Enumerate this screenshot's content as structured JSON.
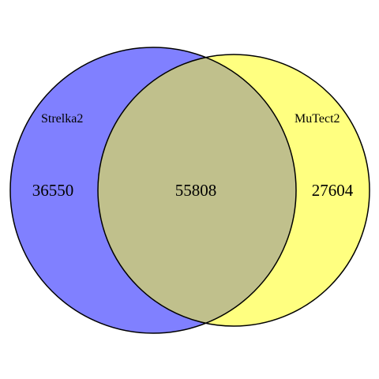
{
  "venn": {
    "sets": [
      {
        "name": "Strelka2",
        "color": "#8080ff"
      },
      {
        "name": "MuTect2",
        "color": "#ffff80"
      }
    ],
    "regions": {
      "only_strelka2": "36550",
      "both": "55808",
      "only_mutect2": "27604"
    },
    "overlap_color": "#c0c08c",
    "outline_color": "#000000"
  }
}
